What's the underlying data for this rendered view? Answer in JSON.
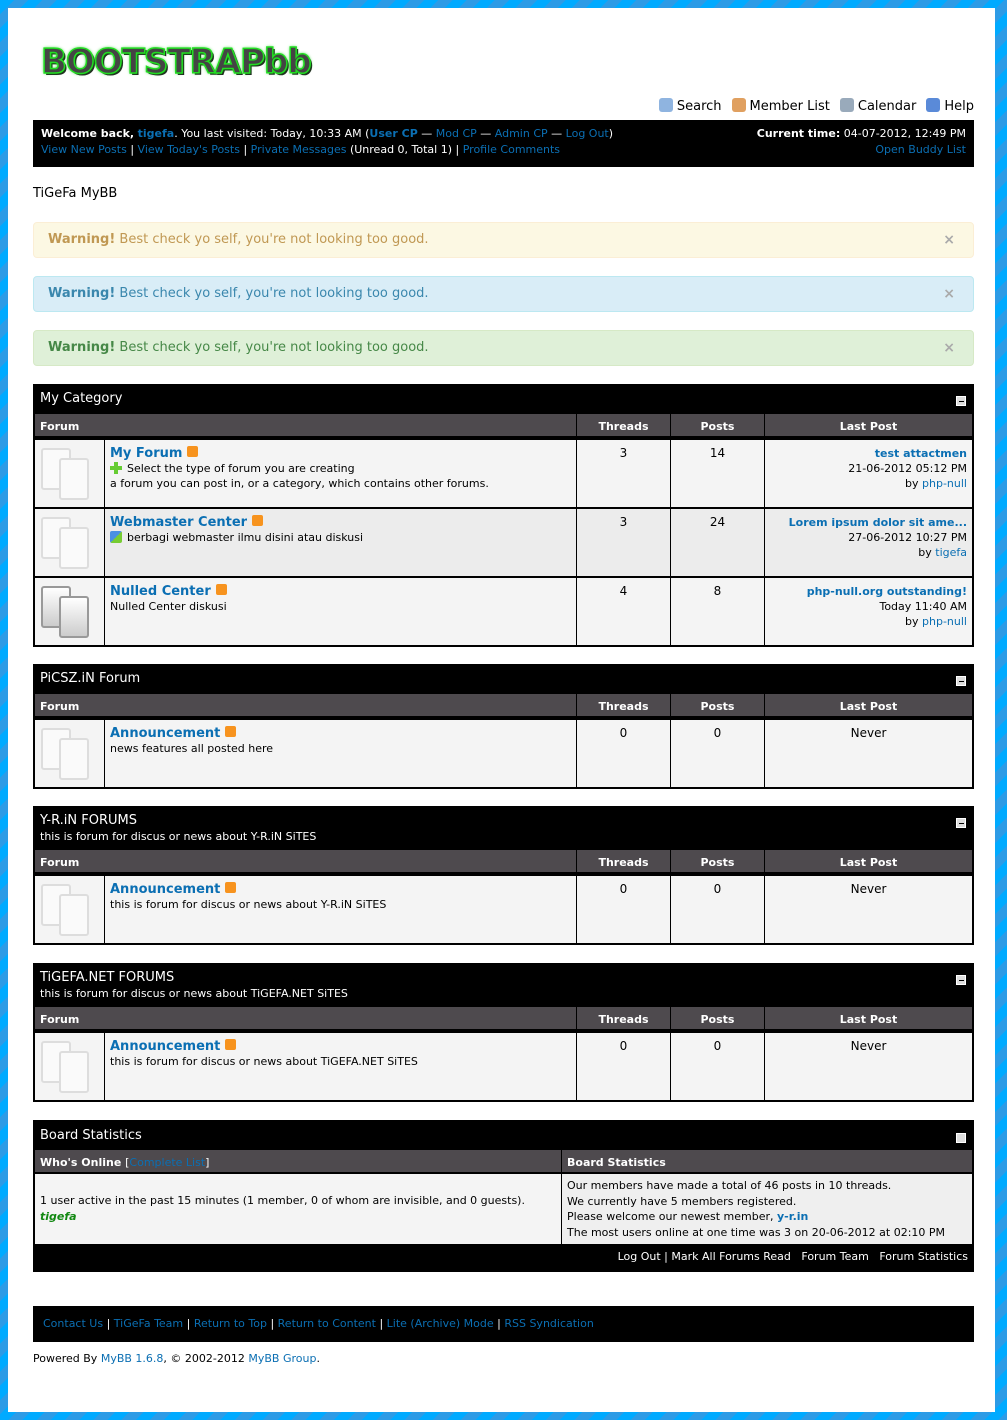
{
  "logo": "BOOTSTRAPbb",
  "menu": [
    {
      "label": "Search",
      "icon": "search-icon",
      "color": "#8fb4e0"
    },
    {
      "label": "Member List",
      "icon": "members-icon",
      "color": "#e0a060"
    },
    {
      "label": "Calendar",
      "icon": "calendar-icon",
      "color": "#9ab"
    },
    {
      "label": "Help",
      "icon": "help-icon",
      "color": "#5a8ad8"
    }
  ],
  "panel": {
    "welcome": "Welcome back,",
    "user": "tigefa",
    "last_visit": ". You last visited: Today, 10:33 AM (",
    "user_cp": "User CP",
    "dash": " — ",
    "mod_cp": "Mod CP",
    "admin_cp": "Admin CP",
    "logout": "Log Out",
    "close_paren": ")",
    "view_new": "View New Posts",
    "sep": " | ",
    "view_today": "View Today's Posts",
    "pm": "Private Messages",
    "pm_count": " (Unread 0, Total 1) ",
    "profile_comments": "Profile Comments",
    "current_time_label": "Current time:",
    "current_time": " 04-07-2012, 12:49 PM",
    "buddy": "Open Buddy List"
  },
  "board_name": "TiGeFa MyBB",
  "alerts": [
    {
      "strong": "Warning!",
      "text": " Best check yo self, you're not looking too good.",
      "bg": "#fcf8e3",
      "border": "#fbeed5",
      "color": "#c09853"
    },
    {
      "strong": "Warning!",
      "text": " Best check yo self, you're not looking too good.",
      "bg": "#d9edf7",
      "border": "#bce8f1",
      "color": "#3a87ad"
    },
    {
      "strong": "Warning!",
      "text": " Best check yo self, you're not looking too good.",
      "bg": "#dff0d8",
      "border": "#d6e9c6",
      "color": "#468847"
    }
  ],
  "alert_close": "×",
  "columns": {
    "forum": "Forum",
    "threads": "Threads",
    "posts": "Posts",
    "last_post": "Last Post"
  },
  "categories": [
    {
      "title": "My Category",
      "desc": "",
      "forums": [
        {
          "name": "My Forum",
          "sub_icon": "plus-icon",
          "sub": "Select the type of forum you are creating",
          "desc": "a forum you can post in, or a category, which contains other forums.",
          "threads": "3",
          "posts": "14",
          "lp_title": "test attactmen",
          "lp_date": "21-06-2012 05:12 PM",
          "lp_by": "by ",
          "lp_user": "php-null",
          "new": false
        },
        {
          "name": "Webmaster Center",
          "sub_icon": "chat-icon",
          "sub": "berbagi webmaster ilmu disini atau diskusi",
          "desc": "",
          "threads": "3",
          "posts": "24",
          "lp_title": "Lorem ipsum dolor sit ame...",
          "lp_date": "27-06-2012 10:27 PM",
          "lp_by": "by ",
          "lp_user": "tigefa",
          "new": false
        },
        {
          "name": "Nulled Center",
          "sub": "",
          "desc": "Nulled Center diskusi",
          "threads": "4",
          "posts": "8",
          "lp_title": "php-null.org outstanding!",
          "lp_date": "Today 11:40 AM",
          "lp_by": "by ",
          "lp_user": "php-null",
          "new": true
        }
      ]
    },
    {
      "title": "PiCSZ.iN Forum",
      "desc": "",
      "forums": [
        {
          "name": "Announcement",
          "sub": "",
          "desc": "news features all posted here",
          "threads": "0",
          "posts": "0",
          "lp_never": "Never"
        }
      ]
    },
    {
      "title": "Y-R.iN FORUMS",
      "desc": "this is forum for discus or news about Y-R.iN SiTES",
      "forums": [
        {
          "name": "Announcement",
          "sub": "",
          "desc": "this is forum for discus or news about Y-R.iN SiTES",
          "threads": "0",
          "posts": "0",
          "lp_never": "Never"
        }
      ]
    },
    {
      "title": "TiGEFA.NET FORUMS",
      "desc": "this is forum for discus or news about TiGEFA.NET SiTES",
      "forums": [
        {
          "name": "Announcement",
          "sub": "",
          "desc": "this is forum for discus or news about TiGEFA.NET SiTES",
          "threads": "0",
          "posts": "0",
          "lp_never": "Never"
        }
      ]
    }
  ],
  "stats": {
    "title": "Board Statistics",
    "online_label": "Who's Online ",
    "bracket_open": "[",
    "complete_list": "Complete List",
    "bracket_close": "]",
    "stats_label": "Board Statistics",
    "online_text": "1 user active in the past 15 minutes (1 member, 0 of whom are invisible, and 0 guests).",
    "online_user": "tigefa",
    "line1": "Our members have made a total of 46 posts in 10 threads.",
    "line2": "We currently have 5 members registered.",
    "line3": "Please welcome our newest member, ",
    "newest": "y-r.in",
    "line4": "The most users online at one time was 3 on 20-06-2012 at 02:10 PM",
    "foot_logout": "Log Out",
    "foot_sep": " | ",
    "foot_mark": "Mark All Forums Read",
    "foot_team": "Forum Team",
    "foot_stats": "Forum Statistics"
  },
  "footer": {
    "links": [
      "Contact Us",
      "TiGeFa Team",
      "Return to Top",
      "Return to Content",
      "Lite (Archive) Mode",
      "RSS Syndication"
    ],
    "sep": " | "
  },
  "powered": {
    "prefix": "Powered By ",
    "mybb": "MyBB 1.6.8",
    "middle": ", © 2002-2012 ",
    "group": "MyBB Group",
    "suffix": "."
  }
}
